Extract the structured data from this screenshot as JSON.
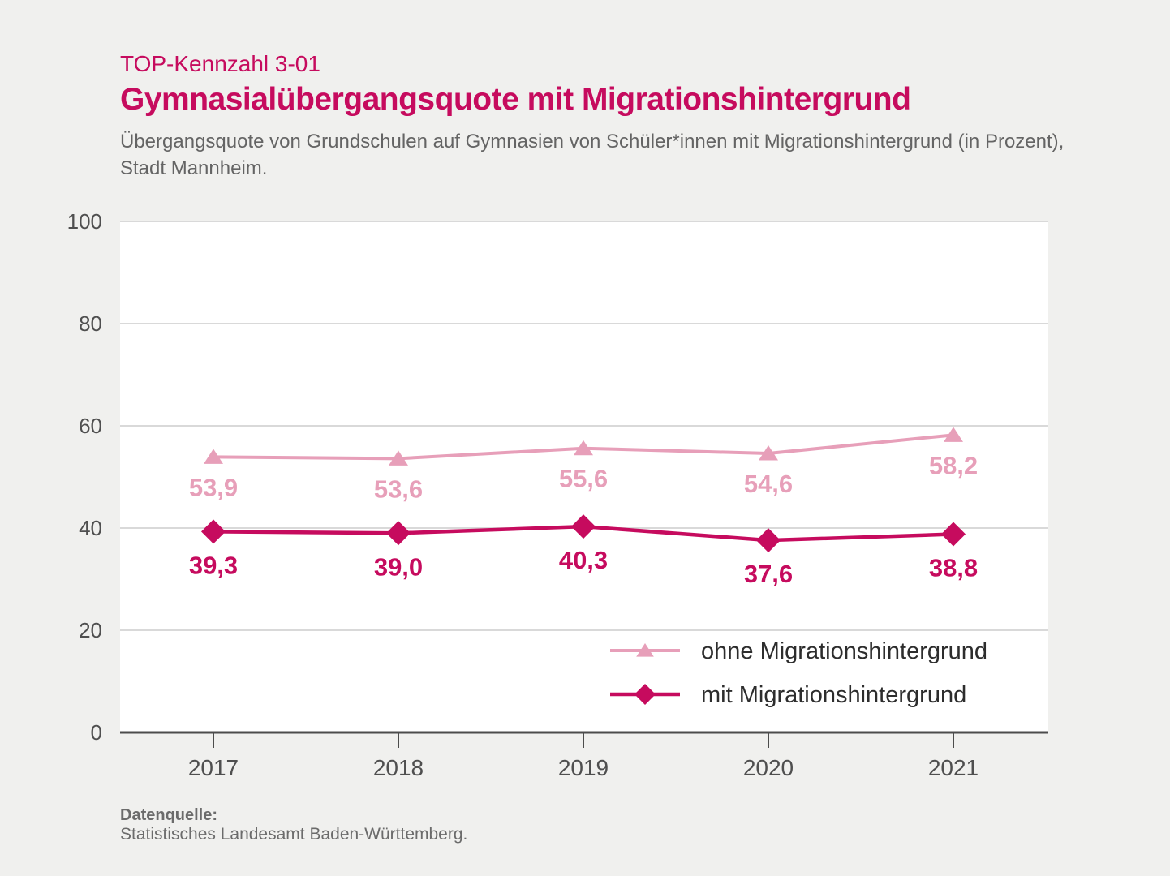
{
  "header": {
    "kicker": "TOP-Kennzahl 3-01",
    "title": "Gymnasialübergangsquote mit Migrationshintergrund",
    "subtitle": "Übergangsquote von Grundschulen auf Gymnasien von Schüler*innen mit Migrationshintergrund (in Prozent), Stadt Mannheim."
  },
  "footer": {
    "source_label": "Datenquelle:",
    "source_text": "Statistisches Landesamt Baden-Württemberg."
  },
  "colors": {
    "background": "#f0f0ee",
    "plot_background": "#ffffff",
    "gridline": "#d9d9d9",
    "axis": "#4c4c4c",
    "axis_label": "#4f4f4f",
    "accent_magenta": "#c60b5e",
    "accent_pink": "#e79fb9",
    "legend_text": "#2d2d2d",
    "subtitle_text": "#646464",
    "footer_text": "#6b6b6b"
  },
  "chart_data": {
    "type": "line",
    "title": "Gymnasialübergangsquote mit Migrationshintergrund",
    "xlabel": "",
    "ylabel": "",
    "categories": [
      "2017",
      "2018",
      "2019",
      "2020",
      "2021"
    ],
    "series": [
      {
        "name": "ohne Migrationshintergrund",
        "values": [
          53.9,
          53.6,
          55.6,
          54.6,
          58.2
        ],
        "display_labels": [
          "53,9",
          "53,6",
          "55,6",
          "54,6",
          "58,2"
        ],
        "color": "#e79fb9",
        "marker": "triangle"
      },
      {
        "name": "mit Migrationshintergrund",
        "values": [
          39.3,
          39.0,
          40.3,
          37.6,
          38.8
        ],
        "display_labels": [
          "39,3",
          "39,0",
          "40,3",
          "37,6",
          "38,8"
        ],
        "color": "#c60b5e",
        "marker": "diamond"
      }
    ],
    "ylim": [
      0,
      100
    ],
    "yticks": [
      0,
      20,
      40,
      60,
      80,
      100
    ],
    "grid": true,
    "legend_position": "inside-bottom-right"
  }
}
